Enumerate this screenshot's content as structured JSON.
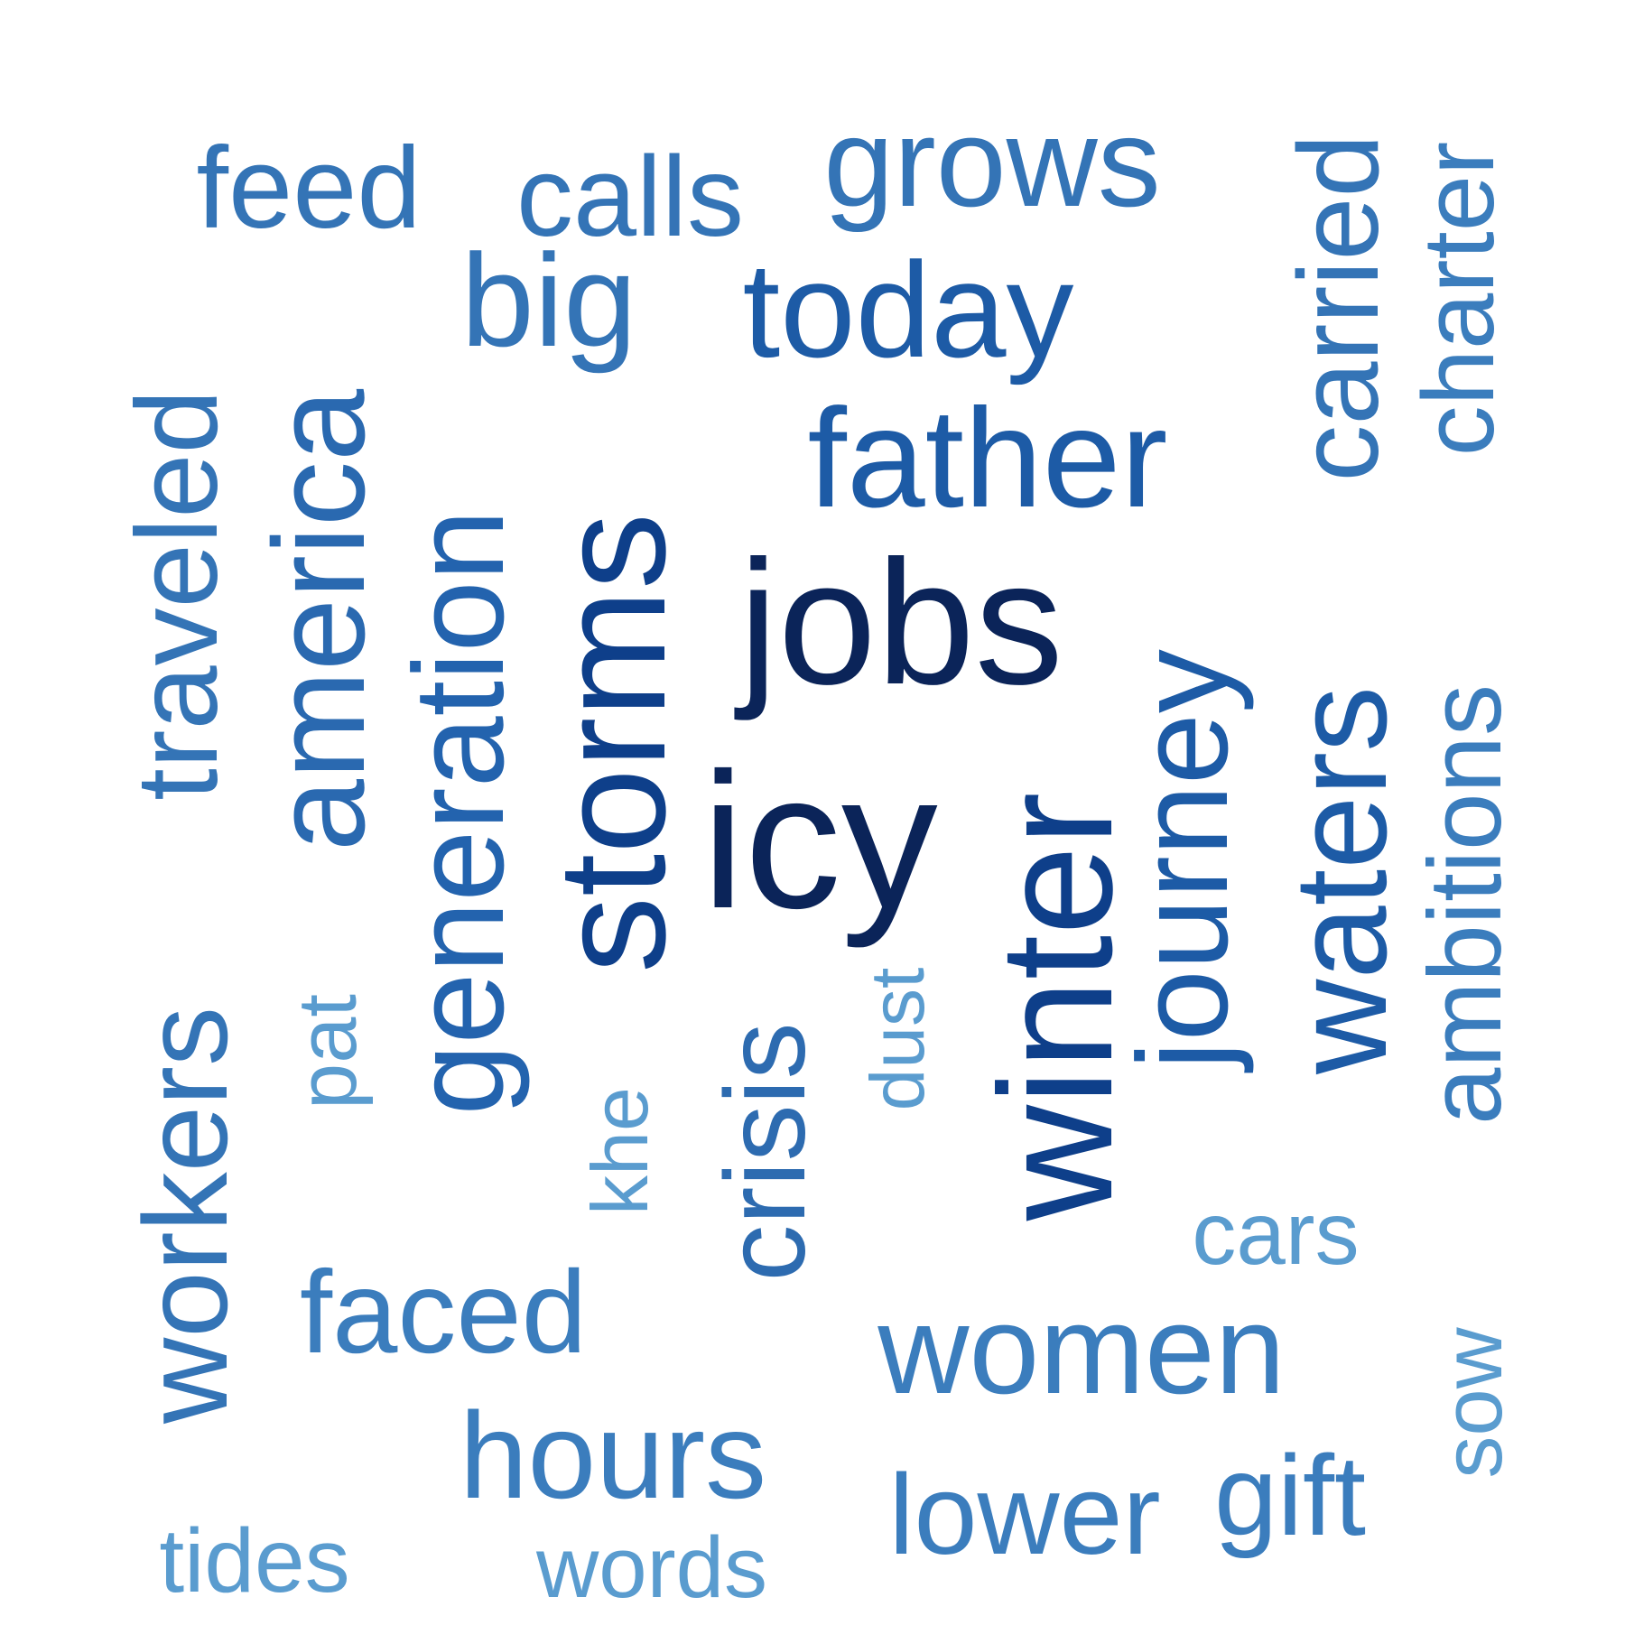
{
  "words": [
    {
      "text": "jobs",
      "color": "#0b2459"
    },
    {
      "text": "icy",
      "color": "#0b2459"
    },
    {
      "text": "storms",
      "color": "#0e3f8a"
    },
    {
      "text": "winter",
      "color": "#0e3f8a"
    },
    {
      "text": "father",
      "color": "#1d5ba6"
    },
    {
      "text": "today",
      "color": "#1d5ba6"
    },
    {
      "text": "journey",
      "color": "#1d5ba6"
    },
    {
      "text": "waters",
      "color": "#1d5ba6"
    },
    {
      "text": "generation",
      "color": "#2363ae"
    },
    {
      "text": "america",
      "color": "#2a69b0"
    },
    {
      "text": "big",
      "color": "#3474b6"
    },
    {
      "text": "grows",
      "color": "#3474b6"
    },
    {
      "text": "carried",
      "color": "#3474b6"
    },
    {
      "text": "traveled",
      "color": "#3474b6"
    },
    {
      "text": "feed",
      "color": "#3474b6"
    },
    {
      "text": "calls",
      "color": "#3474b6"
    },
    {
      "text": "charter",
      "color": "#3b7dbd"
    },
    {
      "text": "ambitions",
      "color": "#3b7dbd"
    },
    {
      "text": "crisis",
      "color": "#2d6bb0"
    },
    {
      "text": "workers",
      "color": "#3474b6"
    },
    {
      "text": "faced",
      "color": "#3b7dbd"
    },
    {
      "text": "women",
      "color": "#3b7dbd"
    },
    {
      "text": "hours",
      "color": "#3b7dbd"
    },
    {
      "text": "lower",
      "color": "#3b7dbd"
    },
    {
      "text": "gift",
      "color": "#3b7dbd"
    },
    {
      "text": "cars",
      "color": "#5a9ccf"
    },
    {
      "text": "sow",
      "color": "#5a9ccf"
    },
    {
      "text": "tides",
      "color": "#5a9ccf"
    },
    {
      "text": "words",
      "color": "#5a9ccf"
    },
    {
      "text": "pat",
      "color": "#5a9ccf"
    },
    {
      "text": "khe",
      "color": "#5a9ccf"
    },
    {
      "text": "dust",
      "color": "#5a9ccf"
    }
  ]
}
